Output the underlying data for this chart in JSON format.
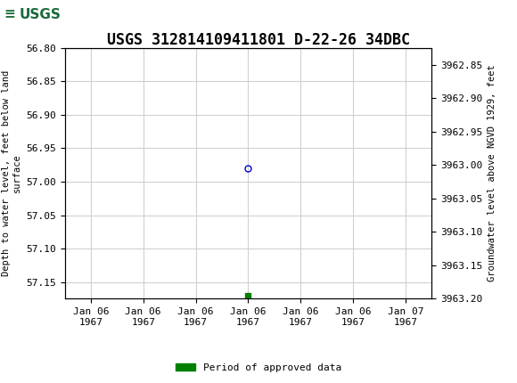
{
  "title": "USGS 312814109411801 D-22-26 34DBC",
  "title_fontsize": 12,
  "header_color": "#1a6b3c",
  "ylabel_left": "Depth to water level, feet below land\nsurface",
  "ylabel_right": "Groundwater level above NGVD 1929, feet",
  "ylim_left": [
    56.8,
    57.175
  ],
  "ylim_right_top": 3963.2,
  "ylim_right_bottom": 3962.825,
  "yticks_left": [
    56.8,
    56.85,
    56.9,
    56.95,
    57.0,
    57.05,
    57.1,
    57.15
  ],
  "yticks_right": [
    3963.2,
    3963.15,
    3963.1,
    3963.05,
    3963.0,
    3962.95,
    3962.9,
    3962.85
  ],
  "data_point_x": 3,
  "data_point_depth": 56.98,
  "data_point_color": "#0000cc",
  "data_point_markersize": 5,
  "approved_x": 3,
  "approved_y": 57.17,
  "approved_color": "#008000",
  "approved_markersize": 4,
  "xlim": [
    -0.5,
    6.5
  ],
  "xtick_positions": [
    0,
    1,
    2,
    3,
    4,
    5,
    6
  ],
  "xtick_labels": [
    "Jan 06\n1967",
    "Jan 06\n1967",
    "Jan 06\n1967",
    "Jan 06\n1967",
    "Jan 06\n1967",
    "Jan 06\n1967",
    "Jan 07\n1967"
  ],
  "grid_color": "#d0d0d0",
  "background_color": "#ffffff",
  "legend_label": "Period of approved data",
  "font_family": "monospace",
  "font_size_ticks": 8,
  "font_size_ylabel": 7.5,
  "font_size_legend": 8
}
